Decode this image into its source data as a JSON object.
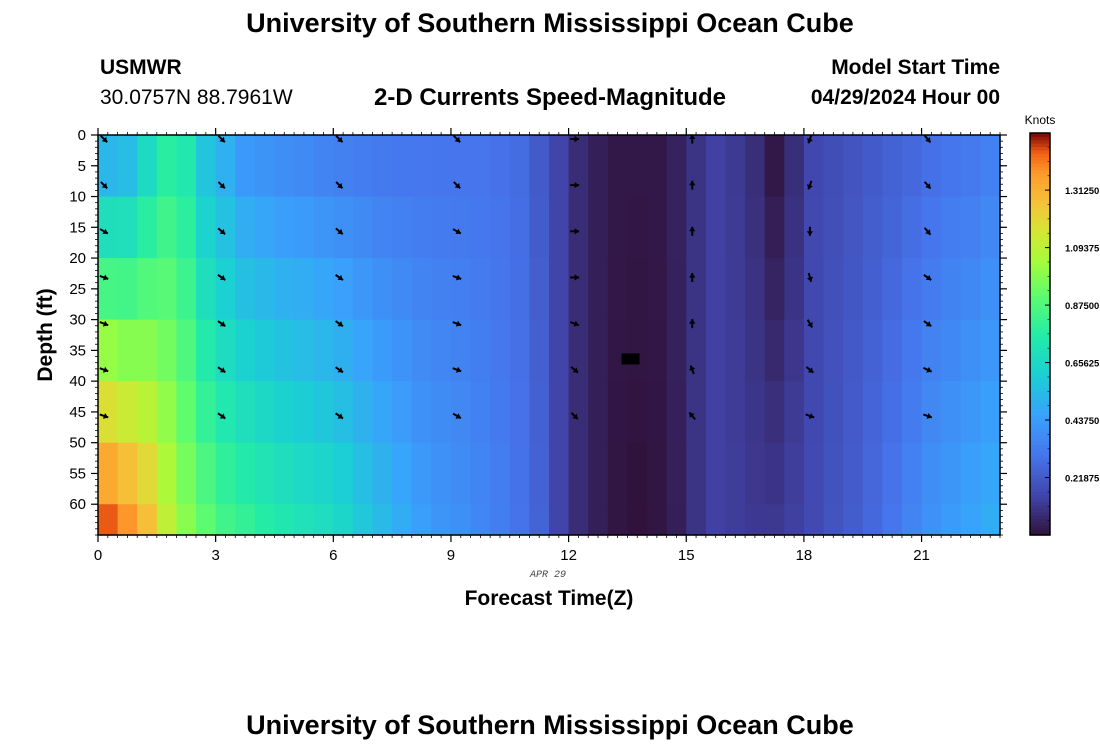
{
  "page": {
    "title": "University of Southern Mississippi Ocean Cube",
    "station": "USMWR",
    "coords": "30.0757N  88.7961W",
    "subtitle": "2-D Currents Speed-Magnitude",
    "model_label": "Model Start Time",
    "model_time": "04/29/2024 Hour 00",
    "date_tag": "APR 29",
    "footer_title": "University of Southern Mississippi Ocean Cube"
  },
  "chart_data": {
    "type": "heatmap",
    "title": "2-D Currents Speed-Magnitude",
    "xlabel": "Forecast Time(Z)",
    "ylabel": "Depth (ft)",
    "xlim": [
      0,
      23
    ],
    "ylim": [
      0,
      65
    ],
    "y_inverted": true,
    "x_ticks": [
      0,
      3,
      6,
      9,
      12,
      15,
      18,
      21
    ],
    "y_ticks": [
      0,
      5,
      10,
      15,
      20,
      25,
      30,
      35,
      40,
      45,
      50,
      55,
      60
    ],
    "colorbar": {
      "label": "Knots",
      "min": 0,
      "max": 1.53,
      "tick_values": [
        0.21875,
        0.4375,
        0.65625,
        0.875,
        1.09375,
        1.3125
      ],
      "tick_labels": [
        "0.21875",
        "0.43750",
        "0.65625",
        "0.87500",
        "1.09375",
        "1.31250"
      ],
      "colormap": "turbo"
    },
    "time_hours": [
      0,
      0.5,
      1,
      1.5,
      2,
      2.5,
      3,
      3.5,
      4,
      4.5,
      5,
      5.5,
      6,
      6.5,
      7,
      7.5,
      8,
      8.5,
      9,
      9.5,
      10,
      10.5,
      11,
      11.5,
      12,
      12.5,
      13,
      13.5,
      14,
      14.5,
      15,
      15.5,
      16,
      16.5,
      17,
      17.5,
      18,
      18.5,
      19,
      19.5,
      20,
      20.5,
      21,
      21.5,
      22,
      22.5,
      23
    ],
    "depth_profile": [
      0,
      10,
      20,
      30,
      40,
      50,
      60,
      65
    ],
    "speed_surface": [
      0.45,
      0.48,
      0.62,
      0.75,
      0.72,
      0.55,
      0.48,
      0.4,
      0.38,
      0.36,
      0.35,
      0.33,
      0.32,
      0.31,
      0.3,
      0.3,
      0.3,
      0.3,
      0.3,
      0.3,
      0.29,
      0.28,
      0.22,
      0.15,
      0.08,
      0.04,
      0.02,
      0.02,
      0.02,
      0.05,
      0.1,
      0.14,
      0.12,
      0.08,
      0.01,
      0.08,
      0.16,
      0.18,
      0.2,
      0.22,
      0.24,
      0.26,
      0.28,
      0.3,
      0.31,
      0.33,
      0.36
    ],
    "speed_bottom": [
      1.5,
      1.42,
      1.3,
      1.12,
      1.0,
      0.92,
      0.85,
      0.82,
      0.78,
      0.75,
      0.72,
      0.7,
      0.66,
      0.6,
      0.55,
      0.5,
      0.45,
      0.42,
      0.4,
      0.37,
      0.34,
      0.3,
      0.25,
      0.15,
      0.08,
      0.04,
      0.01,
      0.0,
      0.01,
      0.04,
      0.1,
      0.14,
      0.13,
      0.12,
      0.12,
      0.14,
      0.17,
      0.2,
      0.23,
      0.27,
      0.31,
      0.36,
      0.41,
      0.44,
      0.47,
      0.5,
      0.55
    ],
    "vectors": {
      "times": [
        0,
        3,
        6,
        9,
        12,
        15,
        18,
        21
      ],
      "depths": [
        0,
        7.5,
        15,
        22.5,
        30,
        37.5,
        45
      ],
      "direction_deg": [
        [
          135,
          135,
          135,
          135,
          90,
          0,
          200,
          140
        ],
        [
          135,
          135,
          135,
          135,
          90,
          0,
          200,
          140
        ],
        [
          120,
          130,
          130,
          120,
          90,
          0,
          180,
          140
        ],
        [
          110,
          125,
          125,
          110,
          90,
          0,
          165,
          125
        ],
        [
          110,
          125,
          125,
          110,
          110,
          0,
          150,
          125
        ],
        [
          110,
          125,
          125,
          110,
          130,
          340,
          130,
          115
        ],
        [
          110,
          125,
          125,
          120,
          135,
          320,
          110,
          110
        ]
      ]
    },
    "annotation": "APR 29"
  }
}
